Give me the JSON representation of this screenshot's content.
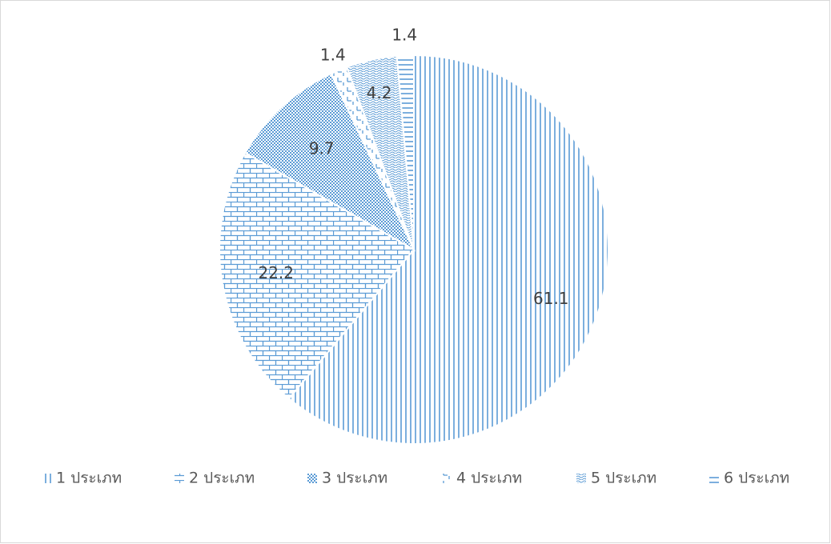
{
  "chart_data": {
    "type": "pie",
    "categories": [
      "1 ประเภท",
      "2 ประเภท",
      "3 ประเภท",
      "4 ประเภท",
      "5 ประเภท",
      "6 ประเภท"
    ],
    "values": [
      61.1,
      22.2,
      9.7,
      1.4,
      4.2,
      1.4
    ],
    "color": "#5b9bd5",
    "legend": "bottom"
  }
}
